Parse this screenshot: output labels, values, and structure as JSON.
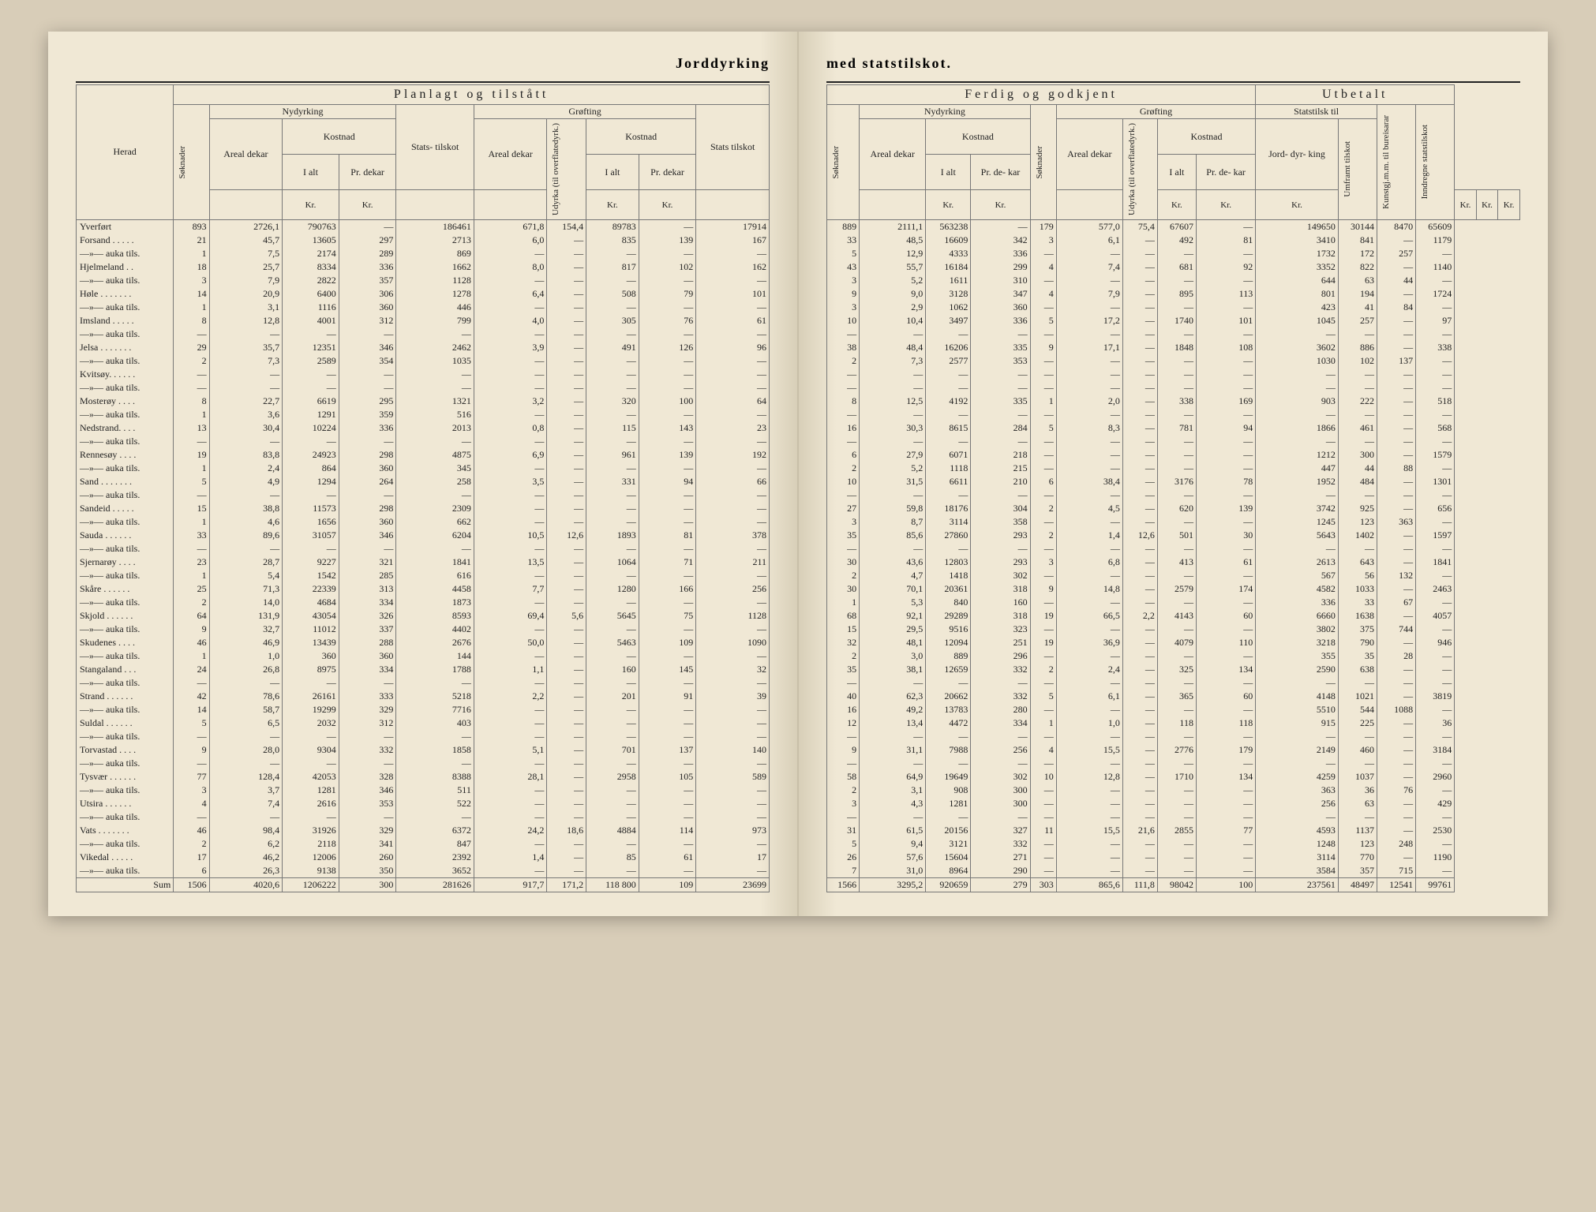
{
  "header_left": "Jorddyrking",
  "header_right": "med statstilskot.",
  "section_left": "Planlagt og tilstått",
  "section_right": "Ferdig og godkjent",
  "section_right2": "Utbetalt",
  "labels": {
    "herad": "Herad",
    "soknader": "Søknader",
    "nydyrking": "Nydyrking",
    "grofting": "Grøfting",
    "kostnad": "Kostnad",
    "areal": "Areal dekar",
    "ialt": "I alt",
    "prdekar": "Pr. dekar",
    "prdekar_short": "Pr. de- kar",
    "stats_tilskot": "Stats- tilskot",
    "stats": "Stats tilskot",
    "udyrka": "Udyrka (til overflatedyrk.)",
    "statstilsk": "Statstilsk til",
    "jorddyrking": "Jord- dyr- king",
    "umframt": "Umframt tilskot",
    "kunstgj": "Kunstgj.m.m. til bureisarar",
    "inndregne": "Inndregne statstilskot",
    "kr": "Kr.",
    "sum": "Sum",
    "yverfort": "Yverført"
  },
  "left_rows": [
    [
      "Yverført",
      "893",
      "2726,1",
      "790763",
      "—",
      "186461",
      "671,8",
      "154,4",
      "89783",
      "—",
      "17914"
    ],
    [
      "Forsand . . . . .",
      "21",
      "45,7",
      "13605",
      "297",
      "2713",
      "6,0",
      "—",
      "835",
      "139",
      "167"
    ],
    [
      "—»— auka tils.",
      "1",
      "7,5",
      "2174",
      "289",
      "869",
      "—",
      "—",
      "—",
      "—",
      "—"
    ],
    [
      "Hjelmeland . .",
      "18",
      "25,7",
      "8334",
      "336",
      "1662",
      "8,0",
      "—",
      "817",
      "102",
      "162"
    ],
    [
      "—»— auka tils.",
      "3",
      "7,9",
      "2822",
      "357",
      "1128",
      "—",
      "—",
      "—",
      "—",
      "—"
    ],
    [
      "Høle . . . . . . .",
      "14",
      "20,9",
      "6400",
      "306",
      "1278",
      "6,4",
      "—",
      "508",
      "79",
      "101"
    ],
    [
      "—»— auka tils.",
      "1",
      "3,1",
      "1116",
      "360",
      "446",
      "—",
      "—",
      "—",
      "—",
      "—"
    ],
    [
      "Imsland . . . . .",
      "8",
      "12,8",
      "4001",
      "312",
      "799",
      "4,0",
      "—",
      "305",
      "76",
      "61"
    ],
    [
      "—»— auka tils.",
      "—",
      "—",
      "—",
      "—",
      "—",
      "—",
      "—",
      "—",
      "—",
      "—"
    ],
    [
      "Jelsa . . . . . . .",
      "29",
      "35,7",
      "12351",
      "346",
      "2462",
      "3,9",
      "—",
      "491",
      "126",
      "96"
    ],
    [
      "—»— auka tils.",
      "2",
      "7,3",
      "2589",
      "354",
      "1035",
      "—",
      "—",
      "—",
      "—",
      "—"
    ],
    [
      "Kvitsøy. . . . . .",
      "—",
      "—",
      "—",
      "—",
      "—",
      "—",
      "—",
      "—",
      "—",
      "—"
    ],
    [
      "—»— auka tils.",
      "—",
      "—",
      "—",
      "—",
      "—",
      "—",
      "—",
      "—",
      "—",
      "—"
    ],
    [
      "Mosterøy . . . .",
      "8",
      "22,7",
      "6619",
      "295",
      "1321",
      "3,2",
      "—",
      "320",
      "100",
      "64"
    ],
    [
      "—»— auka tils.",
      "1",
      "3,6",
      "1291",
      "359",
      "516",
      "—",
      "—",
      "—",
      "—",
      "—"
    ],
    [
      "Nedstrand. . . .",
      "13",
      "30,4",
      "10224",
      "336",
      "2013",
      "0,8",
      "—",
      "115",
      "143",
      "23"
    ],
    [
      "—»— auka tils.",
      "—",
      "—",
      "—",
      "—",
      "—",
      "—",
      "—",
      "—",
      "—",
      "—"
    ],
    [
      "Rennesøy . . . .",
      "19",
      "83,8",
      "24923",
      "298",
      "4875",
      "6,9",
      "—",
      "961",
      "139",
      "192"
    ],
    [
      "—»— auka tils.",
      "1",
      "2,4",
      "864",
      "360",
      "345",
      "—",
      "—",
      "—",
      "—",
      "—"
    ],
    [
      "Sand . . . . . . .",
      "5",
      "4,9",
      "1294",
      "264",
      "258",
      "3,5",
      "—",
      "331",
      "94",
      "66"
    ],
    [
      "—»— auka tils.",
      "—",
      "—",
      "—",
      "—",
      "—",
      "—",
      "—",
      "—",
      "—",
      "—"
    ],
    [
      "Sandeid . . . . .",
      "15",
      "38,8",
      "11573",
      "298",
      "2309",
      "—",
      "—",
      "—",
      "—",
      "—"
    ],
    [
      "—»— auka tils.",
      "1",
      "4,6",
      "1656",
      "360",
      "662",
      "—",
      "—",
      "—",
      "—",
      "—"
    ],
    [
      "Sauda . . . . . .",
      "33",
      "89,6",
      "31057",
      "346",
      "6204",
      "10,5",
      "12,6",
      "1893",
      "81",
      "378"
    ],
    [
      "—»— auka tils.",
      "—",
      "—",
      "—",
      "—",
      "—",
      "—",
      "—",
      "—",
      "—",
      "—"
    ],
    [
      "Sjernarøy . . . .",
      "23",
      "28,7",
      "9227",
      "321",
      "1841",
      "13,5",
      "—",
      "1064",
      "71",
      "211"
    ],
    [
      "—»— auka tils.",
      "1",
      "5,4",
      "1542",
      "285",
      "616",
      "—",
      "—",
      "—",
      "—",
      "—"
    ],
    [
      "Skåre . . . . . .",
      "25",
      "71,3",
      "22339",
      "313",
      "4458",
      "7,7",
      "—",
      "1280",
      "166",
      "256"
    ],
    [
      "—»— auka tils.",
      "2",
      "14,0",
      "4684",
      "334",
      "1873",
      "—",
      "—",
      "—",
      "—",
      "—"
    ],
    [
      "Skjold . . . . . .",
      "64",
      "131,9",
      "43054",
      "326",
      "8593",
      "69,4",
      "5,6",
      "5645",
      "75",
      "1128"
    ],
    [
      "—»— auka tils.",
      "9",
      "32,7",
      "11012",
      "337",
      "4402",
      "—",
      "—",
      "—",
      "—",
      "—"
    ],
    [
      "Skudenes . . . .",
      "46",
      "46,9",
      "13439",
      "288",
      "2676",
      "50,0",
      "—",
      "5463",
      "109",
      "1090"
    ],
    [
      "—»— auka tils.",
      "1",
      "1,0",
      "360",
      "360",
      "144",
      "—",
      "—",
      "—",
      "—",
      "—"
    ],
    [
      "Stangaland . . .",
      "24",
      "26,8",
      "8975",
      "334",
      "1788",
      "1,1",
      "—",
      "160",
      "145",
      "32"
    ],
    [
      "—»— auka tils.",
      "—",
      "—",
      "—",
      "—",
      "—",
      "—",
      "—",
      "—",
      "—",
      "—"
    ],
    [
      "Strand . . . . . .",
      "42",
      "78,6",
      "26161",
      "333",
      "5218",
      "2,2",
      "—",
      "201",
      "91",
      "39"
    ],
    [
      "—»— auka tils.",
      "14",
      "58,7",
      "19299",
      "329",
      "7716",
      "—",
      "—",
      "—",
      "—",
      "—"
    ],
    [
      "Suldal . . . . . .",
      "5",
      "6,5",
      "2032",
      "312",
      "403",
      "—",
      "—",
      "—",
      "—",
      "—"
    ],
    [
      "—»— auka tils.",
      "—",
      "—",
      "—",
      "—",
      "—",
      "—",
      "—",
      "—",
      "—",
      "—"
    ],
    [
      "Torvastad . . . .",
      "9",
      "28,0",
      "9304",
      "332",
      "1858",
      "5,1",
      "—",
      "701",
      "137",
      "140"
    ],
    [
      "—»— auka tils.",
      "—",
      "—",
      "—",
      "—",
      "—",
      "—",
      "—",
      "—",
      "—",
      "—"
    ],
    [
      "Tysvær . . . . . .",
      "77",
      "128,4",
      "42053",
      "328",
      "8388",
      "28,1",
      "—",
      "2958",
      "105",
      "589"
    ],
    [
      "—»— auka tils.",
      "3",
      "3,7",
      "1281",
      "346",
      "511",
      "—",
      "—",
      "—",
      "—",
      "—"
    ],
    [
      "Utsira . . . . . .",
      "4",
      "7,4",
      "2616",
      "353",
      "522",
      "—",
      "—",
      "—",
      "—",
      "—"
    ],
    [
      "—»— auka tils.",
      "—",
      "—",
      "—",
      "—",
      "—",
      "—",
      "—",
      "—",
      "—",
      "—"
    ],
    [
      "Vats . . . . . . .",
      "46",
      "98,4",
      "31926",
      "329",
      "6372",
      "24,2",
      "18,6",
      "4884",
      "114",
      "973"
    ],
    [
      "—»— auka tils.",
      "2",
      "6,2",
      "2118",
      "341",
      "847",
      "—",
      "—",
      "—",
      "—",
      "—"
    ],
    [
      "Vikedal . . . . .",
      "17",
      "46,2",
      "12006",
      "260",
      "2392",
      "1,4",
      "—",
      "85",
      "61",
      "17"
    ],
    [
      "—»— auka tils.",
      "6",
      "26,3",
      "9138",
      "350",
      "3652",
      "—",
      "—",
      "—",
      "—",
      "—"
    ]
  ],
  "left_sum": [
    "Sum",
    "1506",
    "4020,6",
    "1206222",
    "300",
    "281626",
    "917,7",
    "171,2",
    "118 800",
    "109",
    "23699"
  ],
  "right_rows": [
    [
      "889",
      "2111,1",
      "563238",
      "—",
      "179",
      "577,0",
      "75,4",
      "67607",
      "—",
      "149650",
      "30144",
      "8470",
      "65609"
    ],
    [
      "33",
      "48,5",
      "16609",
      "342",
      "3",
      "6,1",
      "—",
      "492",
      "81",
      "3410",
      "841",
      "—",
      "1179"
    ],
    [
      "5",
      "12,9",
      "4333",
      "336",
      "—",
      "—",
      "—",
      "—",
      "—",
      "1732",
      "172",
      "257",
      "—"
    ],
    [
      "43",
      "55,7",
      "16184",
      "299",
      "4",
      "7,4",
      "—",
      "681",
      "92",
      "3352",
      "822",
      "—",
      "1140"
    ],
    [
      "3",
      "5,2",
      "1611",
      "310",
      "—",
      "—",
      "—",
      "—",
      "—",
      "644",
      "63",
      "44",
      "—"
    ],
    [
      "9",
      "9,0",
      "3128",
      "347",
      "4",
      "7,9",
      "—",
      "895",
      "113",
      "801",
      "194",
      "—",
      "1724"
    ],
    [
      "3",
      "2,9",
      "1062",
      "360",
      "—",
      "—",
      "—",
      "—",
      "—",
      "423",
      "41",
      "84",
      "—"
    ],
    [
      "10",
      "10,4",
      "3497",
      "336",
      "5",
      "17,2",
      "—",
      "1740",
      "101",
      "1045",
      "257",
      "—",
      "97"
    ],
    [
      "—",
      "—",
      "—",
      "—",
      "—",
      "—",
      "—",
      "—",
      "—",
      "—",
      "—",
      "—",
      "—"
    ],
    [
      "38",
      "48,4",
      "16206",
      "335",
      "9",
      "17,1",
      "—",
      "1848",
      "108",
      "3602",
      "886",
      "—",
      "338"
    ],
    [
      "2",
      "7,3",
      "2577",
      "353",
      "—",
      "—",
      "—",
      "—",
      "—",
      "1030",
      "102",
      "137",
      "—"
    ],
    [
      "—",
      "—",
      "—",
      "—",
      "—",
      "—",
      "—",
      "—",
      "—",
      "—",
      "—",
      "—",
      "—"
    ],
    [
      "—",
      "—",
      "—",
      "—",
      "—",
      "—",
      "—",
      "—",
      "—",
      "—",
      "—",
      "—",
      "—"
    ],
    [
      "8",
      "12,5",
      "4192",
      "335",
      "1",
      "2,0",
      "—",
      "338",
      "169",
      "903",
      "222",
      "—",
      "518"
    ],
    [
      "—",
      "—",
      "—",
      "—",
      "—",
      "—",
      "—",
      "—",
      "—",
      "—",
      "—",
      "—",
      "—"
    ],
    [
      "16",
      "30,3",
      "8615",
      "284",
      "5",
      "8,3",
      "—",
      "781",
      "94",
      "1866",
      "461",
      "—",
      "568"
    ],
    [
      "—",
      "—",
      "—",
      "—",
      "—",
      "—",
      "—",
      "—",
      "—",
      "—",
      "—",
      "—",
      "—"
    ],
    [
      "6",
      "27,9",
      "6071",
      "218",
      "—",
      "—",
      "—",
      "—",
      "—",
      "1212",
      "300",
      "—",
      "1579"
    ],
    [
      "2",
      "5,2",
      "1118",
      "215",
      "—",
      "—",
      "—",
      "—",
      "—",
      "447",
      "44",
      "88",
      "—"
    ],
    [
      "10",
      "31,5",
      "6611",
      "210",
      "6",
      "38,4",
      "—",
      "3176",
      "78",
      "1952",
      "484",
      "—",
      "1301"
    ],
    [
      "—",
      "—",
      "—",
      "—",
      "—",
      "—",
      "—",
      "—",
      "—",
      "—",
      "—",
      "—",
      "—"
    ],
    [
      "27",
      "59,8",
      "18176",
      "304",
      "2",
      "4,5",
      "—",
      "620",
      "139",
      "3742",
      "925",
      "—",
      "656"
    ],
    [
      "3",
      "8,7",
      "3114",
      "358",
      "—",
      "—",
      "—",
      "—",
      "—",
      "1245",
      "123",
      "363",
      "—"
    ],
    [
      "35",
      "85,6",
      "27860",
      "293",
      "2",
      "1,4",
      "12,6",
      "501",
      "30",
      "5643",
      "1402",
      "—",
      "1597"
    ],
    [
      "—",
      "—",
      "—",
      "—",
      "—",
      "—",
      "—",
      "—",
      "—",
      "—",
      "—",
      "—",
      "—"
    ],
    [
      "30",
      "43,6",
      "12803",
      "293",
      "3",
      "6,8",
      "—",
      "413",
      "61",
      "2613",
      "643",
      "—",
      "1841"
    ],
    [
      "2",
      "4,7",
      "1418",
      "302",
      "—",
      "—",
      "—",
      "—",
      "—",
      "567",
      "56",
      "132",
      "—"
    ],
    [
      "30",
      "70,1",
      "20361",
      "318",
      "9",
      "14,8",
      "—",
      "2579",
      "174",
      "4582",
      "1033",
      "—",
      "2463"
    ],
    [
      "1",
      "5,3",
      "840",
      "160",
      "—",
      "—",
      "—",
      "—",
      "—",
      "336",
      "33",
      "67",
      "—"
    ],
    [
      "68",
      "92,1",
      "29289",
      "318",
      "19",
      "66,5",
      "2,2",
      "4143",
      "60",
      "6660",
      "1638",
      "—",
      "4057"
    ],
    [
      "15",
      "29,5",
      "9516",
      "323",
      "—",
      "—",
      "—",
      "—",
      "—",
      "3802",
      "375",
      "744",
      "—"
    ],
    [
      "32",
      "48,1",
      "12094",
      "251",
      "19",
      "36,9",
      "—",
      "4079",
      "110",
      "3218",
      "790",
      "—",
      "946"
    ],
    [
      "2",
      "3,0",
      "889",
      "296",
      "—",
      "—",
      "—",
      "—",
      "—",
      "355",
      "35",
      "28",
      "—"
    ],
    [
      "35",
      "38,1",
      "12659",
      "332",
      "2",
      "2,4",
      "—",
      "325",
      "134",
      "2590",
      "638",
      "—",
      "—"
    ],
    [
      "—",
      "—",
      "—",
      "—",
      "—",
      "—",
      "—",
      "—",
      "—",
      "—",
      "—",
      "—",
      "—"
    ],
    [
      "40",
      "62,3",
      "20662",
      "332",
      "5",
      "6,1",
      "—",
      "365",
      "60",
      "4148",
      "1021",
      "—",
      "3819"
    ],
    [
      "16",
      "49,2",
      "13783",
      "280",
      "—",
      "—",
      "—",
      "—",
      "—",
      "5510",
      "544",
      "1088",
      "—"
    ],
    [
      "12",
      "13,4",
      "4472",
      "334",
      "1",
      "1,0",
      "—",
      "118",
      "118",
      "915",
      "225",
      "—",
      "36"
    ],
    [
      "—",
      "—",
      "—",
      "—",
      "—",
      "—",
      "—",
      "—",
      "—",
      "—",
      "—",
      "—",
      "—"
    ],
    [
      "9",
      "31,1",
      "7988",
      "256",
      "4",
      "15,5",
      "—",
      "2776",
      "179",
      "2149",
      "460",
      "—",
      "3184"
    ],
    [
      "—",
      "—",
      "—",
      "—",
      "—",
      "—",
      "—",
      "—",
      "—",
      "—",
      "—",
      "—",
      "—"
    ],
    [
      "58",
      "64,9",
      "19649",
      "302",
      "10",
      "12,8",
      "—",
      "1710",
      "134",
      "4259",
      "1037",
      "—",
      "2960"
    ],
    [
      "2",
      "3,1",
      "908",
      "300",
      "—",
      "—",
      "—",
      "—",
      "—",
      "363",
      "36",
      "76",
      "—"
    ],
    [
      "3",
      "4,3",
      "1281",
      "300",
      "—",
      "—",
      "—",
      "—",
      "—",
      "256",
      "63",
      "—",
      "429"
    ],
    [
      "—",
      "—",
      "—",
      "—",
      "—",
      "—",
      "—",
      "—",
      "—",
      "—",
      "—",
      "—",
      "—"
    ],
    [
      "31",
      "61,5",
      "20156",
      "327",
      "11",
      "15,5",
      "21,6",
      "2855",
      "77",
      "4593",
      "1137",
      "—",
      "2530"
    ],
    [
      "5",
      "9,4",
      "3121",
      "332",
      "—",
      "—",
      "—",
      "—",
      "—",
      "1248",
      "123",
      "248",
      "—"
    ],
    [
      "26",
      "57,6",
      "15604",
      "271",
      "—",
      "—",
      "—",
      "—",
      "—",
      "3114",
      "770",
      "—",
      "1190"
    ],
    [
      "7",
      "31,0",
      "8964",
      "290",
      "—",
      "—",
      "—",
      "—",
      "—",
      "3584",
      "357",
      "715",
      "—"
    ]
  ],
  "right_sum": [
    "1566",
    "3295,2",
    "920659",
    "279",
    "303",
    "865,6",
    "111,8",
    "98042",
    "100",
    "237561",
    "48497",
    "12541",
    "99761"
  ]
}
